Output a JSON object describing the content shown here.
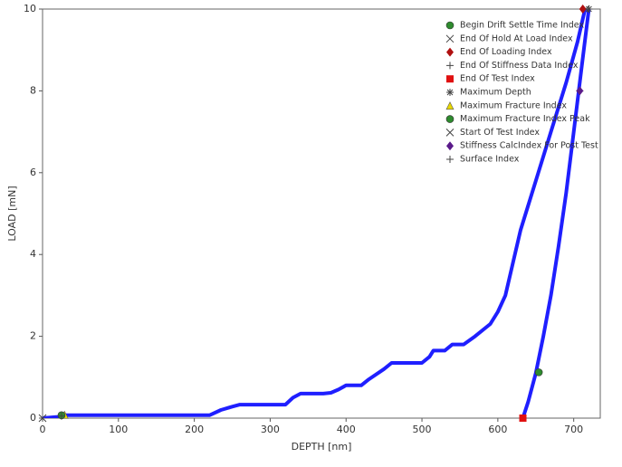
{
  "chart_data": {
    "type": "line",
    "xlabel": "DEPTH [nm]",
    "ylabel": "LOAD [mN]",
    "xlim": [
      0,
      735
    ],
    "ylim": [
      0,
      10
    ],
    "xticks": [
      0,
      100,
      200,
      300,
      400,
      500,
      600,
      700
    ],
    "yticks": [
      0,
      2,
      4,
      6,
      8,
      10
    ],
    "curves": [
      {
        "color": "#1f1fff",
        "x": [
          0,
          20,
          30,
          100,
          220,
          235,
          250,
          260,
          320,
          330,
          340,
          370,
          380,
          390,
          400,
          420,
          430,
          450,
          460,
          500,
          510,
          515,
          530,
          540,
          555,
          570,
          590,
          600,
          610,
          620,
          630,
          650,
          670,
          690,
          705,
          715
        ],
        "values": [
          0,
          0.03,
          0.07,
          0.07,
          0.07,
          0.2,
          0.28,
          0.33,
          0.33,
          0.5,
          0.6,
          0.6,
          0.62,
          0.7,
          0.8,
          0.8,
          0.95,
          1.2,
          1.35,
          1.35,
          1.5,
          1.65,
          1.65,
          1.8,
          1.8,
          2.0,
          2.3,
          2.6,
          3.0,
          3.8,
          4.6,
          5.8,
          7.0,
          8.2,
          9.2,
          10
        ]
      },
      {
        "color": "#1f1fff",
        "x": [
          720,
          710,
          700,
          690,
          680,
          670,
          660,
          650,
          640,
          633
        ],
        "values": [
          10,
          8.5,
          7,
          5.5,
          4.2,
          3.0,
          2.0,
          1.1,
          0.4,
          0
        ]
      }
    ],
    "series": [
      {
        "name": "Begin Drift Settle Time Index",
        "marker": "circle",
        "color": "#2e8b2e",
        "x": [
          654
        ],
        "values": [
          1.12
        ]
      },
      {
        "name": "End Of Hold At Load Index",
        "marker": "x",
        "color": "#444444",
        "x": [
          716
        ],
        "values": [
          10
        ]
      },
      {
        "name": "End Of Loading Index",
        "marker": "diamond",
        "color": "#b01010",
        "x": [
          712
        ],
        "values": [
          10
        ]
      },
      {
        "name": "End Of Stiffness Data Index",
        "marker": "plus",
        "color": "#444444",
        "x": [
          708
        ],
        "values": [
          8
        ]
      },
      {
        "name": "End Of Test Index",
        "marker": "square",
        "color": "#e01010",
        "x": [
          633
        ],
        "values": [
          0
        ]
      },
      {
        "name": "Maximum Depth",
        "marker": "star",
        "color": "#444444",
        "x": [
          720
        ],
        "values": [
          10
        ]
      },
      {
        "name": "Maximum Fracture Index",
        "marker": "triangle",
        "color": "#e8d800",
        "x": [
          29
        ],
        "values": [
          0.08
        ]
      },
      {
        "name": "Maximum Fracture Index Peak",
        "marker": "circle",
        "color": "#2e8b2e",
        "x": [
          25
        ],
        "values": [
          0.07
        ]
      },
      {
        "name": "Start Of Test Index",
        "marker": "x",
        "color": "#444444",
        "x": [
          0
        ],
        "values": [
          0
        ]
      },
      {
        "name": "Stiffness CalcIndex For Post Test",
        "marker": "diamond",
        "color": "#5a1a8a",
        "x": [
          708
        ],
        "values": [
          8
        ]
      },
      {
        "name": "Surface Index",
        "marker": "plus",
        "color": "#444444",
        "x": [
          25
        ],
        "values": [
          0.05
        ]
      }
    ]
  }
}
